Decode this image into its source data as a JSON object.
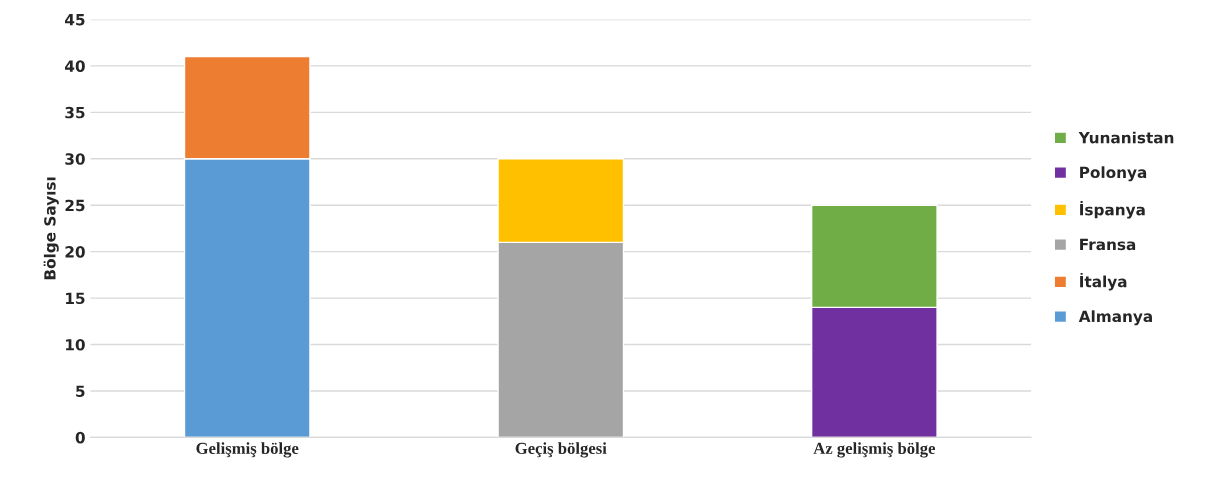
{
  "chart_data": {
    "type": "bar",
    "stacked": true,
    "ylabel": "Bölge Sayısı",
    "categories": [
      "Gelişmiş bölge",
      "Geçiş bölgesi",
      "Az gelişmiş bölge"
    ],
    "series": [
      {
        "name": "Almanya",
        "color": "#5b9bd5",
        "values": [
          30,
          null,
          null
        ]
      },
      {
        "name": "İtalya",
        "color": "#ed7d31",
        "values": [
          11,
          null,
          null
        ]
      },
      {
        "name": "Fransa",
        "color": "#a5a5a5",
        "values": [
          null,
          21,
          null
        ]
      },
      {
        "name": "İspanya",
        "color": "#ffc000",
        "values": [
          null,
          9,
          null
        ]
      },
      {
        "name": "Polonya",
        "color": "#7030a0",
        "values": [
          null,
          null,
          14
        ]
      },
      {
        "name": "Yunanistan",
        "color": "#70ad47",
        "values": [
          null,
          null,
          11
        ]
      }
    ],
    "ylim": [
      0,
      45
    ],
    "yticks": [
      0,
      5,
      10,
      15,
      20,
      25,
      30,
      35,
      40,
      45
    ],
    "grid": "y",
    "legend": "right"
  }
}
